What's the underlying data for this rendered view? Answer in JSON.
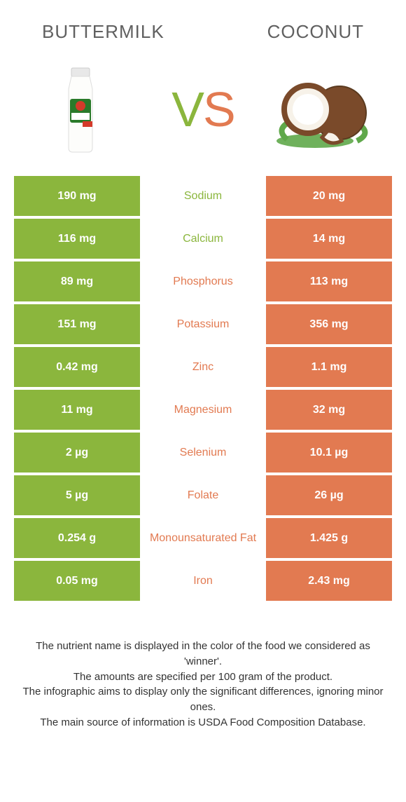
{
  "colors": {
    "left": "#8bb63d",
    "right": "#e27a51",
    "text_mid_left": "#8bb63d",
    "text_mid_right": "#e27a51"
  },
  "titles": {
    "left": "Buttermilk",
    "right": "Coconut"
  },
  "vs": {
    "v": "V",
    "s": "S"
  },
  "rows": [
    {
      "left": "190 mg",
      "label": "Sodium",
      "right": "20 mg",
      "winner": "left"
    },
    {
      "left": "116 mg",
      "label": "Calcium",
      "right": "14 mg",
      "winner": "left"
    },
    {
      "left": "89 mg",
      "label": "Phosphorus",
      "right": "113 mg",
      "winner": "right"
    },
    {
      "left": "151 mg",
      "label": "Potassium",
      "right": "356 mg",
      "winner": "right"
    },
    {
      "left": "0.42 mg",
      "label": "Zinc",
      "right": "1.1 mg",
      "winner": "right"
    },
    {
      "left": "11 mg",
      "label": "Magnesium",
      "right": "32 mg",
      "winner": "right"
    },
    {
      "left": "2 µg",
      "label": "Selenium",
      "right": "10.1 µg",
      "winner": "right"
    },
    {
      "left": "5 µg",
      "label": "Folate",
      "right": "26 µg",
      "winner": "right"
    },
    {
      "left": "0.254 g",
      "label": "Monounsaturated Fat",
      "right": "1.425 g",
      "winner": "right"
    },
    {
      "left": "0.05 mg",
      "label": "Iron",
      "right": "2.43 mg",
      "winner": "right"
    }
  ],
  "footnotes": [
    "The nutrient name is displayed in the color of the food we considered as 'winner'.",
    "The amounts are specified per 100 gram of the product.",
    "The infographic aims to display only the significant differences, ignoring minor ones.",
    "The main source of information is USDA Food Composition Database."
  ]
}
